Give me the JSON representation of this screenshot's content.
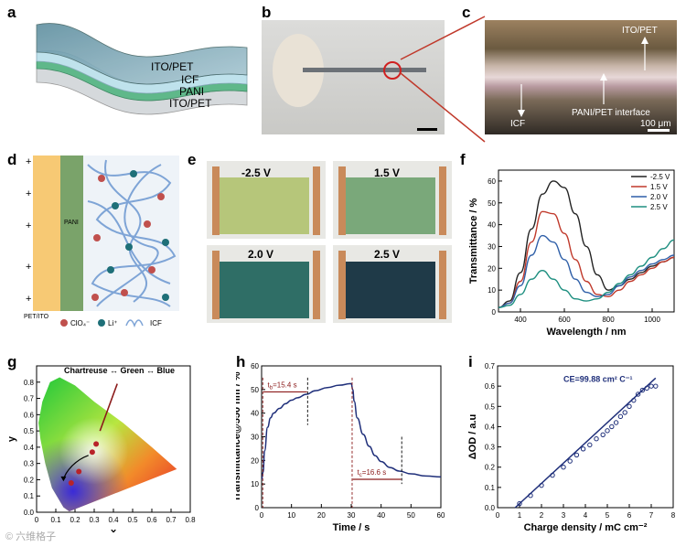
{
  "panels": {
    "a": {
      "letter": "a",
      "layers": [
        "ITO/PET",
        "ICF",
        "PANI",
        "ITO/PET"
      ]
    },
    "b": {
      "letter": "b"
    },
    "c": {
      "letter": "c",
      "labels": {
        "top": "ITO/PET",
        "icf": "ICF",
        "interface": "PANI/PET interface",
        "scale": "100 μm"
      }
    },
    "d": {
      "letter": "d",
      "labels": {
        "pani": "PANI",
        "petito": "PET/ITO",
        "clo4": "ClO₄⁻",
        "li": "Li⁺",
        "icf": "ICF"
      },
      "plus": "+"
    },
    "e": {
      "letter": "e",
      "voltages": [
        "-2.5 V",
        "1.5 V",
        "2.0 V",
        "2.5 V"
      ]
    },
    "f": {
      "letter": "f"
    },
    "g": {
      "letter": "g",
      "title": "Chartreuse ↔ Green ↔ Blue"
    },
    "h": {
      "letter": "h",
      "annotations": {
        "tb": "t",
        "tb_sub": "b",
        "tb_val": "=15.4 s",
        "tc": "t",
        "tc_sub": "c",
        "tc_val": "=16.6 s"
      }
    },
    "i": {
      "letter": "i",
      "annotation": "CE=99.88 cm² C⁻¹"
    }
  },
  "watermark": "© 六维格子",
  "colors": {
    "black": "#222222",
    "red": "#c0392b",
    "blue": "#2f5fa8",
    "teal": "#1e8f80",
    "navy": "#1f2f7a",
    "darkred": "#8b1a1a"
  },
  "chart_data": [
    {
      "type": "line",
      "panel": "f",
      "xlabel": "Wavelength / nm",
      "ylabel": "Transmittance / %",
      "xlim": [
        300,
        1100
      ],
      "ylim": [
        0,
        65
      ],
      "xticks": [
        400,
        600,
        800,
        1000
      ],
      "yticks": [
        0,
        10,
        20,
        30,
        40,
        50,
        60
      ],
      "legend": "top-right",
      "series": [
        {
          "name": "-2.5 V",
          "color": "#222222",
          "x": [
            300,
            350,
            400,
            450,
            500,
            550,
            600,
            650,
            700,
            750,
            800,
            850,
            900,
            950,
            1000,
            1050,
            1100
          ],
          "y": [
            2,
            5,
            18,
            38,
            54,
            60,
            57,
            45,
            30,
            17,
            10,
            12,
            15,
            18,
            21,
            23,
            25
          ]
        },
        {
          "name": "1.5 V",
          "color": "#c0392b",
          "x": [
            300,
            350,
            400,
            450,
            500,
            550,
            600,
            650,
            700,
            750,
            800,
            850,
            900,
            950,
            1000,
            1050,
            1100
          ],
          "y": [
            2,
            4,
            14,
            32,
            46,
            45,
            36,
            24,
            14,
            8,
            7,
            10,
            14,
            17,
            20,
            23,
            25
          ]
        },
        {
          "name": "2.0 V",
          "color": "#2f5fa8",
          "x": [
            300,
            350,
            400,
            450,
            500,
            550,
            600,
            650,
            700,
            750,
            800,
            850,
            900,
            950,
            1000,
            1050,
            1100
          ],
          "y": [
            2,
            4,
            12,
            26,
            35,
            32,
            24,
            15,
            9,
            7,
            8,
            12,
            16,
            19,
            22,
            24,
            26
          ]
        },
        {
          "name": "2.5 V",
          "color": "#1e8f80",
          "x": [
            300,
            350,
            400,
            450,
            500,
            550,
            600,
            650,
            700,
            750,
            800,
            850,
            900,
            950,
            1000,
            1050,
            1100
          ],
          "y": [
            2,
            3,
            8,
            15,
            19,
            15,
            10,
            6,
            5,
            6,
            9,
            13,
            17,
            21,
            25,
            29,
            33
          ]
        }
      ]
    },
    {
      "type": "scatter",
      "panel": "g",
      "xlabel": "x",
      "ylabel": "y",
      "xlim": [
        0,
        0.8
      ],
      "ylim": [
        0,
        0.9
      ],
      "xticks": [
        0.0,
        0.1,
        0.2,
        0.3,
        0.4,
        0.5,
        0.6,
        0.7,
        0.8
      ],
      "yticks": [
        0.0,
        0.1,
        0.2,
        0.3,
        0.4,
        0.5,
        0.6,
        0.7,
        0.8
      ],
      "points": [
        {
          "x": 0.31,
          "y": 0.42
        },
        {
          "x": 0.29,
          "y": 0.37
        },
        {
          "x": 0.22,
          "y": 0.25
        },
        {
          "x": 0.18,
          "y": 0.18
        }
      ]
    },
    {
      "type": "line",
      "panel": "h",
      "xlabel": "Time / s",
      "ylabel": "Transmittance@550 nm / %",
      "xlim": [
        0,
        60
      ],
      "ylim": [
        0,
        60
      ],
      "xticks": [
        0,
        10,
        20,
        30,
        40,
        50,
        60
      ],
      "yticks": [
        0,
        10,
        20,
        30,
        40,
        50,
        60
      ],
      "x": [
        0,
        0.5,
        1,
        2,
        3,
        4,
        6,
        8,
        10,
        12,
        15,
        18,
        22,
        26,
        30,
        30.5,
        31,
        32,
        34,
        36,
        38,
        40,
        43,
        46,
        50,
        55,
        60
      ],
      "y": [
        12,
        15,
        24,
        34,
        38,
        40,
        42,
        44,
        45.5,
        46.5,
        48,
        49.5,
        50.8,
        51.8,
        52.5,
        50,
        45,
        38,
        31,
        26,
        22,
        19.5,
        17,
        15.5,
        14.3,
        13.4,
        13
      ]
    },
    {
      "type": "scatter",
      "panel": "i",
      "xlabel": "Charge density / mC cm⁻²",
      "ylabel": "ΔOD / a.u",
      "xlim": [
        0,
        8
      ],
      "ylim": [
        0,
        0.7
      ],
      "xticks": [
        0,
        1,
        2,
        3,
        4,
        5,
        6,
        7,
        8
      ],
      "yticks": [
        0.0,
        0.1,
        0.2,
        0.3,
        0.4,
        0.5,
        0.6,
        0.7
      ],
      "points_x": [
        1.0,
        1.5,
        2.0,
        2.5,
        3.0,
        3.3,
        3.6,
        3.9,
        4.2,
        4.5,
        4.8,
        5.0,
        5.2,
        5.4,
        5.6,
        5.8,
        6.0,
        6.2,
        6.4,
        6.6,
        6.8,
        7.0,
        7.2
      ],
      "points_y": [
        0.02,
        0.06,
        0.11,
        0.16,
        0.2,
        0.23,
        0.26,
        0.29,
        0.31,
        0.34,
        0.36,
        0.38,
        0.4,
        0.42,
        0.45,
        0.47,
        0.5,
        0.53,
        0.56,
        0.58,
        0.59,
        0.6,
        0.6
      ],
      "fit": {
        "x": [
          0.8,
          7.2
        ],
        "y": [
          0.0,
          0.64
        ]
      }
    }
  ]
}
